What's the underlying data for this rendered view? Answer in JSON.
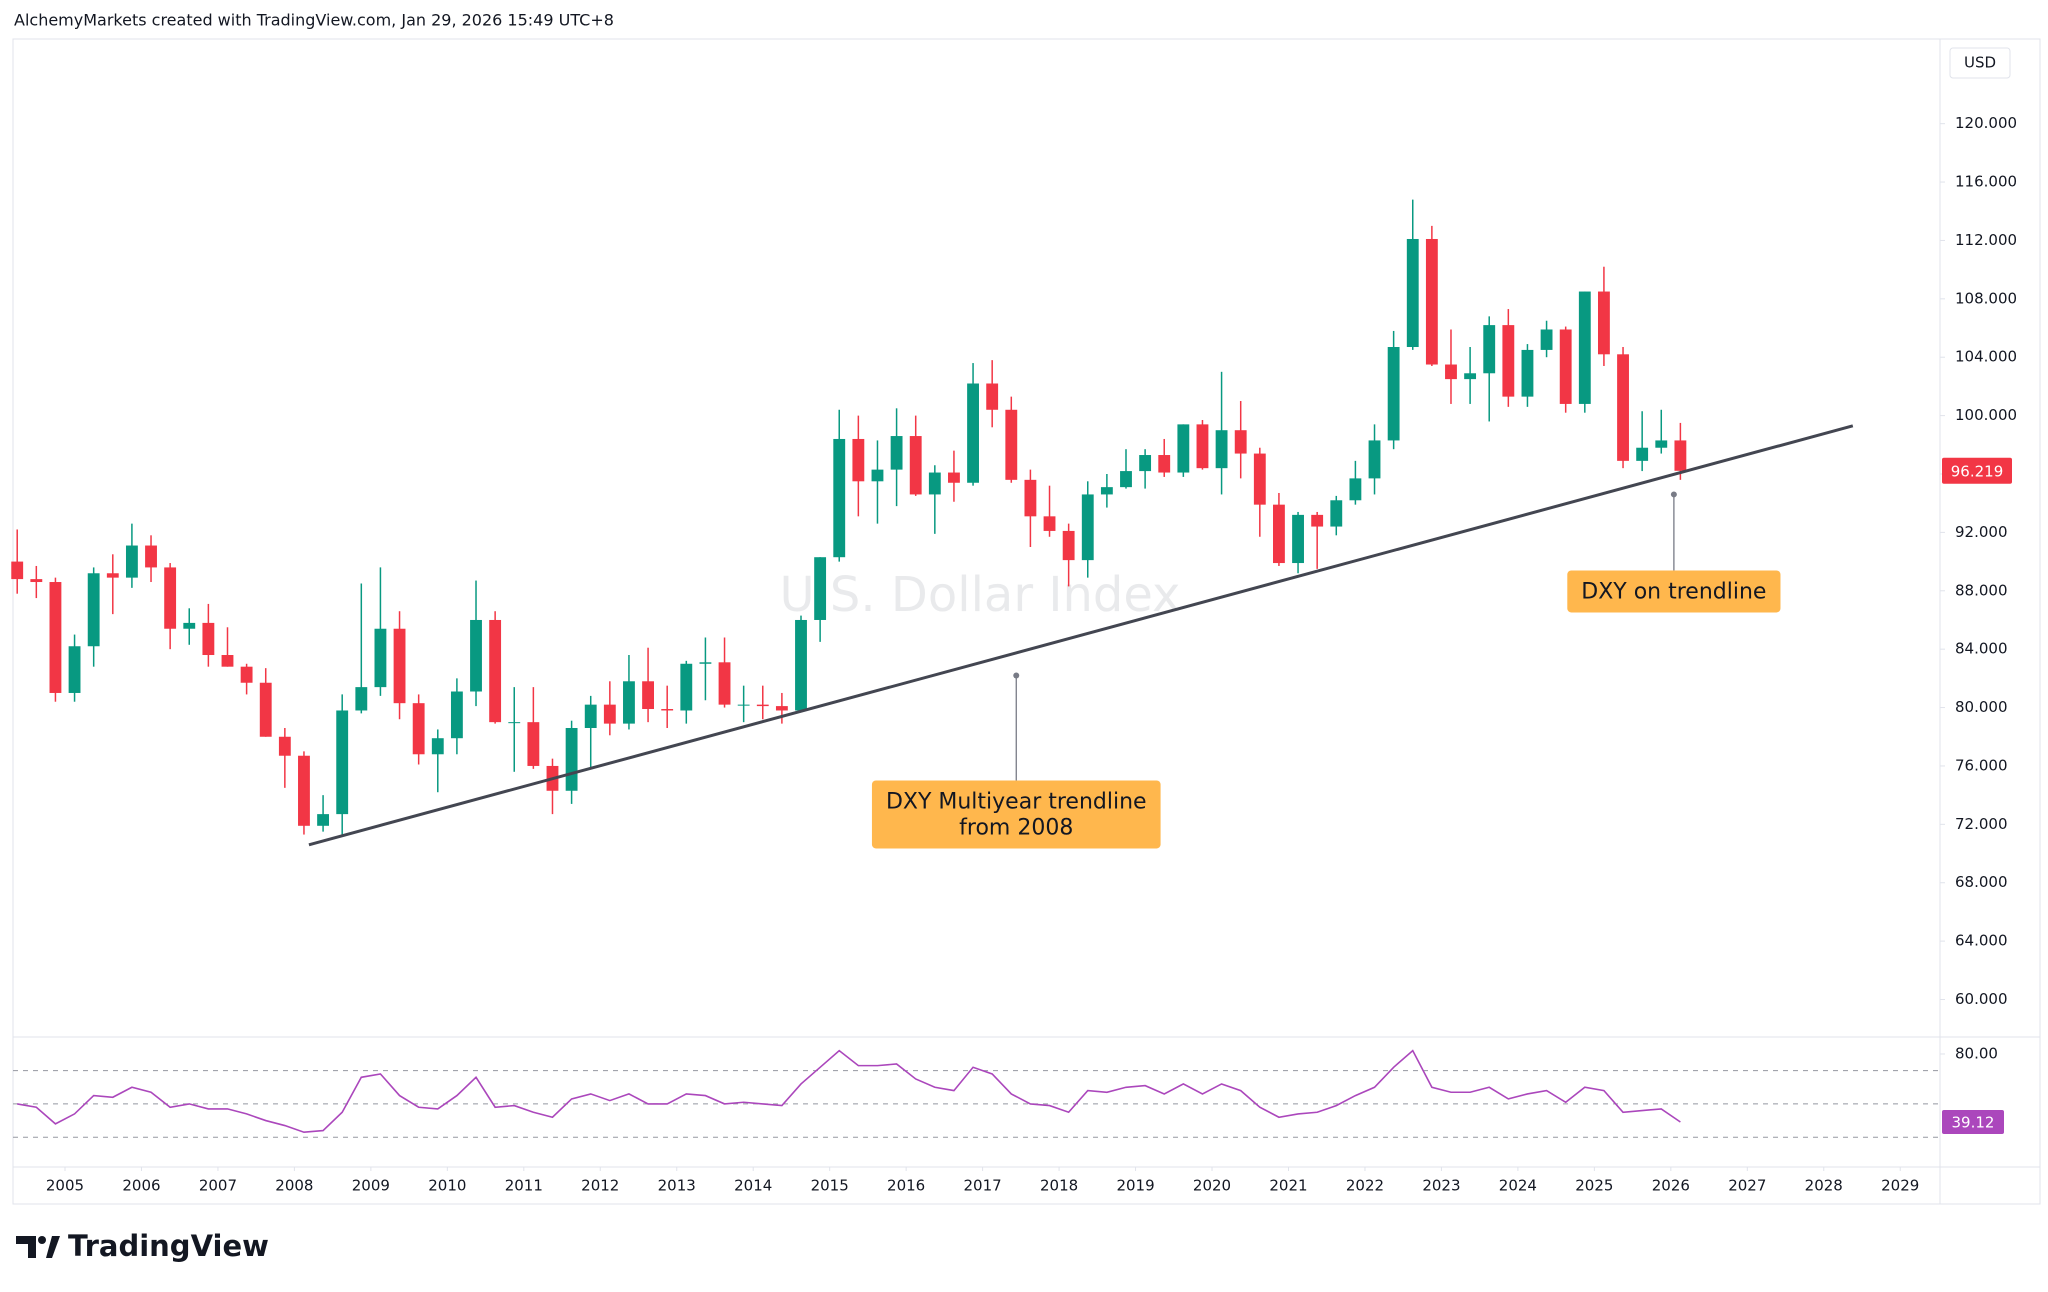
{
  "header": {
    "title": "AlchemyMarkets created with TradingView.com, Jan 29, 2026 15:49 UTC+8"
  },
  "logo": "TradingView",
  "chart_data": [
    {
      "type": "candlestick",
      "watermark": "U.S. Dollar Index",
      "currency": "USD",
      "up_color": "#089981",
      "down_color": "#f23645",
      "x": [
        2004.375,
        2004.625,
        2004.875,
        2005.125,
        2005.375,
        2005.625,
        2005.875,
        2006.125,
        2006.375,
        2006.625,
        2006.875,
        2007.125,
        2007.375,
        2007.625,
        2007.875,
        2008.125,
        2008.375,
        2008.625,
        2008.875,
        2009.125,
        2009.375,
        2009.625,
        2009.875,
        2010.125,
        2010.375,
        2010.625,
        2010.875,
        2011.125,
        2011.375,
        2011.625,
        2011.875,
        2012.125,
        2012.375,
        2012.625,
        2012.875,
        2013.125,
        2013.375,
        2013.625,
        2013.875,
        2014.125,
        2014.375,
        2014.625,
        2014.875,
        2015.125,
        2015.375,
        2015.625,
        2015.875,
        2016.125,
        2016.375,
        2016.625,
        2016.875,
        2017.125,
        2017.375,
        2017.625,
        2017.875,
        2018.125,
        2018.375,
        2018.625,
        2018.875,
        2019.125,
        2019.375,
        2019.625,
        2019.875,
        2020.125,
        2020.375,
        2020.625,
        2020.875,
        2021.125,
        2021.375,
        2021.625,
        2021.875,
        2022.125,
        2022.375,
        2022.625,
        2022.875,
        2023.125,
        2023.375,
        2023.625,
        2023.875,
        2024.125,
        2024.375,
        2024.625,
        2024.875,
        2025.125,
        2025.375,
        2025.625,
        2025.875,
        2026.125
      ],
      "open": [
        90.0,
        88.8,
        88.6,
        81.0,
        84.2,
        89.2,
        88.9,
        91.1,
        89.6,
        85.4,
        85.8,
        83.6,
        82.8,
        81.7,
        78.0,
        76.7,
        71.9,
        72.7,
        79.8,
        81.4,
        85.4,
        80.3,
        76.8,
        77.9,
        81.1,
        86.0,
        79.0,
        79.0,
        76.0,
        74.3,
        78.6,
        80.2,
        78.9,
        81.8,
        79.9,
        79.8,
        83.0,
        83.1,
        80.2,
        80.2,
        80.1,
        79.8,
        86.0,
        90.3,
        98.4,
        95.5,
        96.3,
        98.6,
        94.6,
        96.1,
        95.4,
        102.2,
        100.4,
        95.6,
        93.1,
        92.1,
        90.1,
        94.6,
        95.1,
        96.2,
        97.3,
        96.1,
        99.4,
        96.4,
        99.0,
        97.4,
        93.9,
        89.9,
        93.2,
        92.4,
        94.2,
        95.7,
        98.3,
        104.7,
        112.1,
        103.5,
        102.5,
        102.9,
        106.2,
        101.3,
        104.5,
        105.9,
        100.8,
        108.5,
        104.2,
        96.9,
        97.8,
        98.3
      ],
      "high": [
        92.2,
        89.7,
        88.9,
        85.0,
        89.6,
        90.5,
        92.6,
        91.8,
        89.9,
        86.8,
        87.1,
        85.5,
        83.0,
        82.7,
        78.6,
        77.0,
        74.0,
        80.9,
        88.5,
        89.6,
        86.6,
        80.9,
        78.5,
        82.0,
        88.7,
        86.6,
        81.4,
        81.4,
        76.5,
        79.1,
        80.8,
        81.8,
        83.6,
        84.1,
        81.5,
        83.2,
        84.8,
        84.8,
        81.5,
        81.5,
        81.0,
        86.3,
        90.3,
        100.4,
        100.0,
        98.3,
        100.5,
        100.0,
        96.6,
        97.6,
        103.6,
        103.8,
        101.3,
        96.3,
        95.2,
        92.6,
        95.5,
        96.0,
        97.7,
        97.7,
        98.4,
        99.4,
        99.7,
        103.0,
        101.0,
        97.8,
        94.7,
        93.4,
        93.4,
        94.5,
        96.9,
        99.4,
        105.8,
        114.8,
        113.0,
        105.9,
        104.7,
        106.8,
        107.3,
        104.9,
        106.5,
        106.1,
        108.5,
        110.2,
        104.7,
        100.3,
        100.4,
        99.5
      ],
      "low": [
        87.8,
        87.5,
        80.4,
        80.4,
        82.8,
        86.4,
        88.2,
        88.6,
        84.0,
        84.3,
        82.8,
        82.8,
        80.9,
        78.0,
        74.5,
        71.3,
        71.5,
        71.3,
        79.6,
        80.8,
        79.2,
        76.1,
        74.2,
        76.8,
        80.1,
        78.9,
        75.6,
        75.8,
        72.7,
        73.4,
        75.8,
        78.1,
        78.5,
        79.0,
        78.6,
        78.9,
        80.5,
        80.0,
        79.0,
        79.2,
        78.9,
        79.7,
        84.5,
        90.0,
        93.1,
        92.6,
        93.8,
        94.5,
        91.9,
        94.1,
        95.2,
        99.2,
        95.4,
        91.0,
        91.7,
        88.3,
        88.9,
        93.7,
        95.0,
        95.0,
        95.8,
        95.8,
        96.3,
        94.6,
        95.7,
        91.7,
        89.7,
        89.2,
        89.5,
        91.8,
        93.9,
        94.6,
        97.7,
        104.5,
        103.4,
        100.8,
        100.8,
        99.6,
        100.6,
        100.6,
        104.0,
        100.2,
        100.2,
        103.4,
        96.4,
        96.2,
        97.4,
        95.6
      ],
      "close": [
        88.8,
        88.6,
        81.0,
        84.2,
        89.2,
        88.9,
        91.1,
        89.6,
        85.4,
        85.8,
        83.6,
        82.8,
        81.7,
        78.0,
        76.7,
        71.9,
        72.7,
        79.8,
        81.4,
        85.4,
        80.3,
        76.8,
        77.9,
        81.1,
        86.0,
        79.0,
        79.0,
        76.0,
        74.3,
        78.6,
        80.2,
        78.9,
        81.8,
        79.9,
        79.8,
        83.0,
        83.1,
        80.2,
        80.2,
        80.1,
        79.8,
        86.0,
        90.3,
        98.4,
        95.5,
        96.3,
        98.6,
        94.6,
        96.1,
        95.4,
        102.2,
        100.4,
        95.6,
        93.1,
        92.1,
        90.1,
        94.6,
        95.1,
        96.2,
        97.3,
        96.1,
        99.4,
        96.4,
        99.0,
        97.4,
        93.9,
        89.9,
        93.2,
        92.4,
        94.2,
        95.7,
        98.3,
        104.7,
        112.1,
        103.5,
        102.5,
        102.9,
        106.2,
        101.3,
        104.5,
        105.9,
        100.8,
        108.5,
        104.2,
        96.9,
        97.8,
        98.3,
        96.219
      ],
      "xlim": [
        2004.32,
        2029.52
      ],
      "xticks": [
        2005,
        2006,
        2007,
        2008,
        2009,
        2010,
        2011,
        2012,
        2013,
        2014,
        2015,
        2016,
        2017,
        2018,
        2019,
        2020,
        2021,
        2022,
        2023,
        2024,
        2025,
        2026,
        2027,
        2028,
        2029
      ],
      "ylim": [
        57.5,
        125.8
      ],
      "yticks": [
        {
          "value": 60,
          "label": "60.000"
        },
        {
          "value": 64,
          "label": "64.000"
        },
        {
          "value": 68,
          "label": "68.000"
        },
        {
          "value": 72,
          "label": "72.000"
        },
        {
          "value": 76,
          "label": "76.000"
        },
        {
          "value": 80,
          "label": "80.000"
        },
        {
          "value": 84,
          "label": "84.000"
        },
        {
          "value": 88,
          "label": "88.000"
        },
        {
          "value": 92,
          "label": "92.000"
        },
        {
          "value": 96,
          "label": "96.000"
        },
        {
          "value": 100,
          "label": "100.000"
        },
        {
          "value": 104,
          "label": "104.000"
        },
        {
          "value": 108,
          "label": "108.000"
        },
        {
          "value": 112,
          "label": "112.000"
        },
        {
          "value": 116,
          "label": "116.000"
        },
        {
          "value": 120,
          "label": "120.000"
        }
      ],
      "grid": false,
      "trendline": {
        "x": [
          2008.19,
          2028.38
        ],
        "y": [
          70.6,
          99.3
        ],
        "color": "#434651"
      },
      "annotations": [
        {
          "text": [
            "DXY Multiyear trendline",
            "from 2008"
          ],
          "x": 2017.44,
          "y": 82.2,
          "color": "#ffb74d"
        },
        {
          "text": [
            "DXY on trendline"
          ],
          "x": 2026.04,
          "y": 94.6,
          "color": "#ffb74d"
        }
      ]
    },
    {
      "type": "line",
      "color": "#ab47bc",
      "values": [
        50,
        48,
        38,
        44,
        55,
        54,
        60,
        57,
        48,
        50,
        47,
        47,
        44,
        40,
        37,
        33,
        34,
        45,
        66,
        68,
        55,
        48,
        47,
        55,
        66,
        48,
        49,
        45,
        42,
        53,
        56,
        52,
        56,
        50,
        50,
        56,
        55,
        50,
        51,
        50,
        49,
        62,
        72,
        82,
        73,
        73,
        74,
        65,
        60,
        58,
        72,
        68,
        56,
        50,
        49,
        45,
        58,
        57,
        60,
        61,
        56,
        62,
        56,
        62,
        58,
        48,
        42,
        44,
        45,
        49,
        55,
        60,
        72,
        82,
        60,
        57,
        57,
        60,
        53,
        56,
        58,
        51,
        60,
        58,
        45,
        46,
        47,
        39.12
      ],
      "ylim": [
        12.7,
        89.6
      ],
      "yticks": [
        {
          "value": 80,
          "label": "80.00"
        }
      ],
      "levels": [
        70,
        50,
        30
      ]
    }
  ]
}
